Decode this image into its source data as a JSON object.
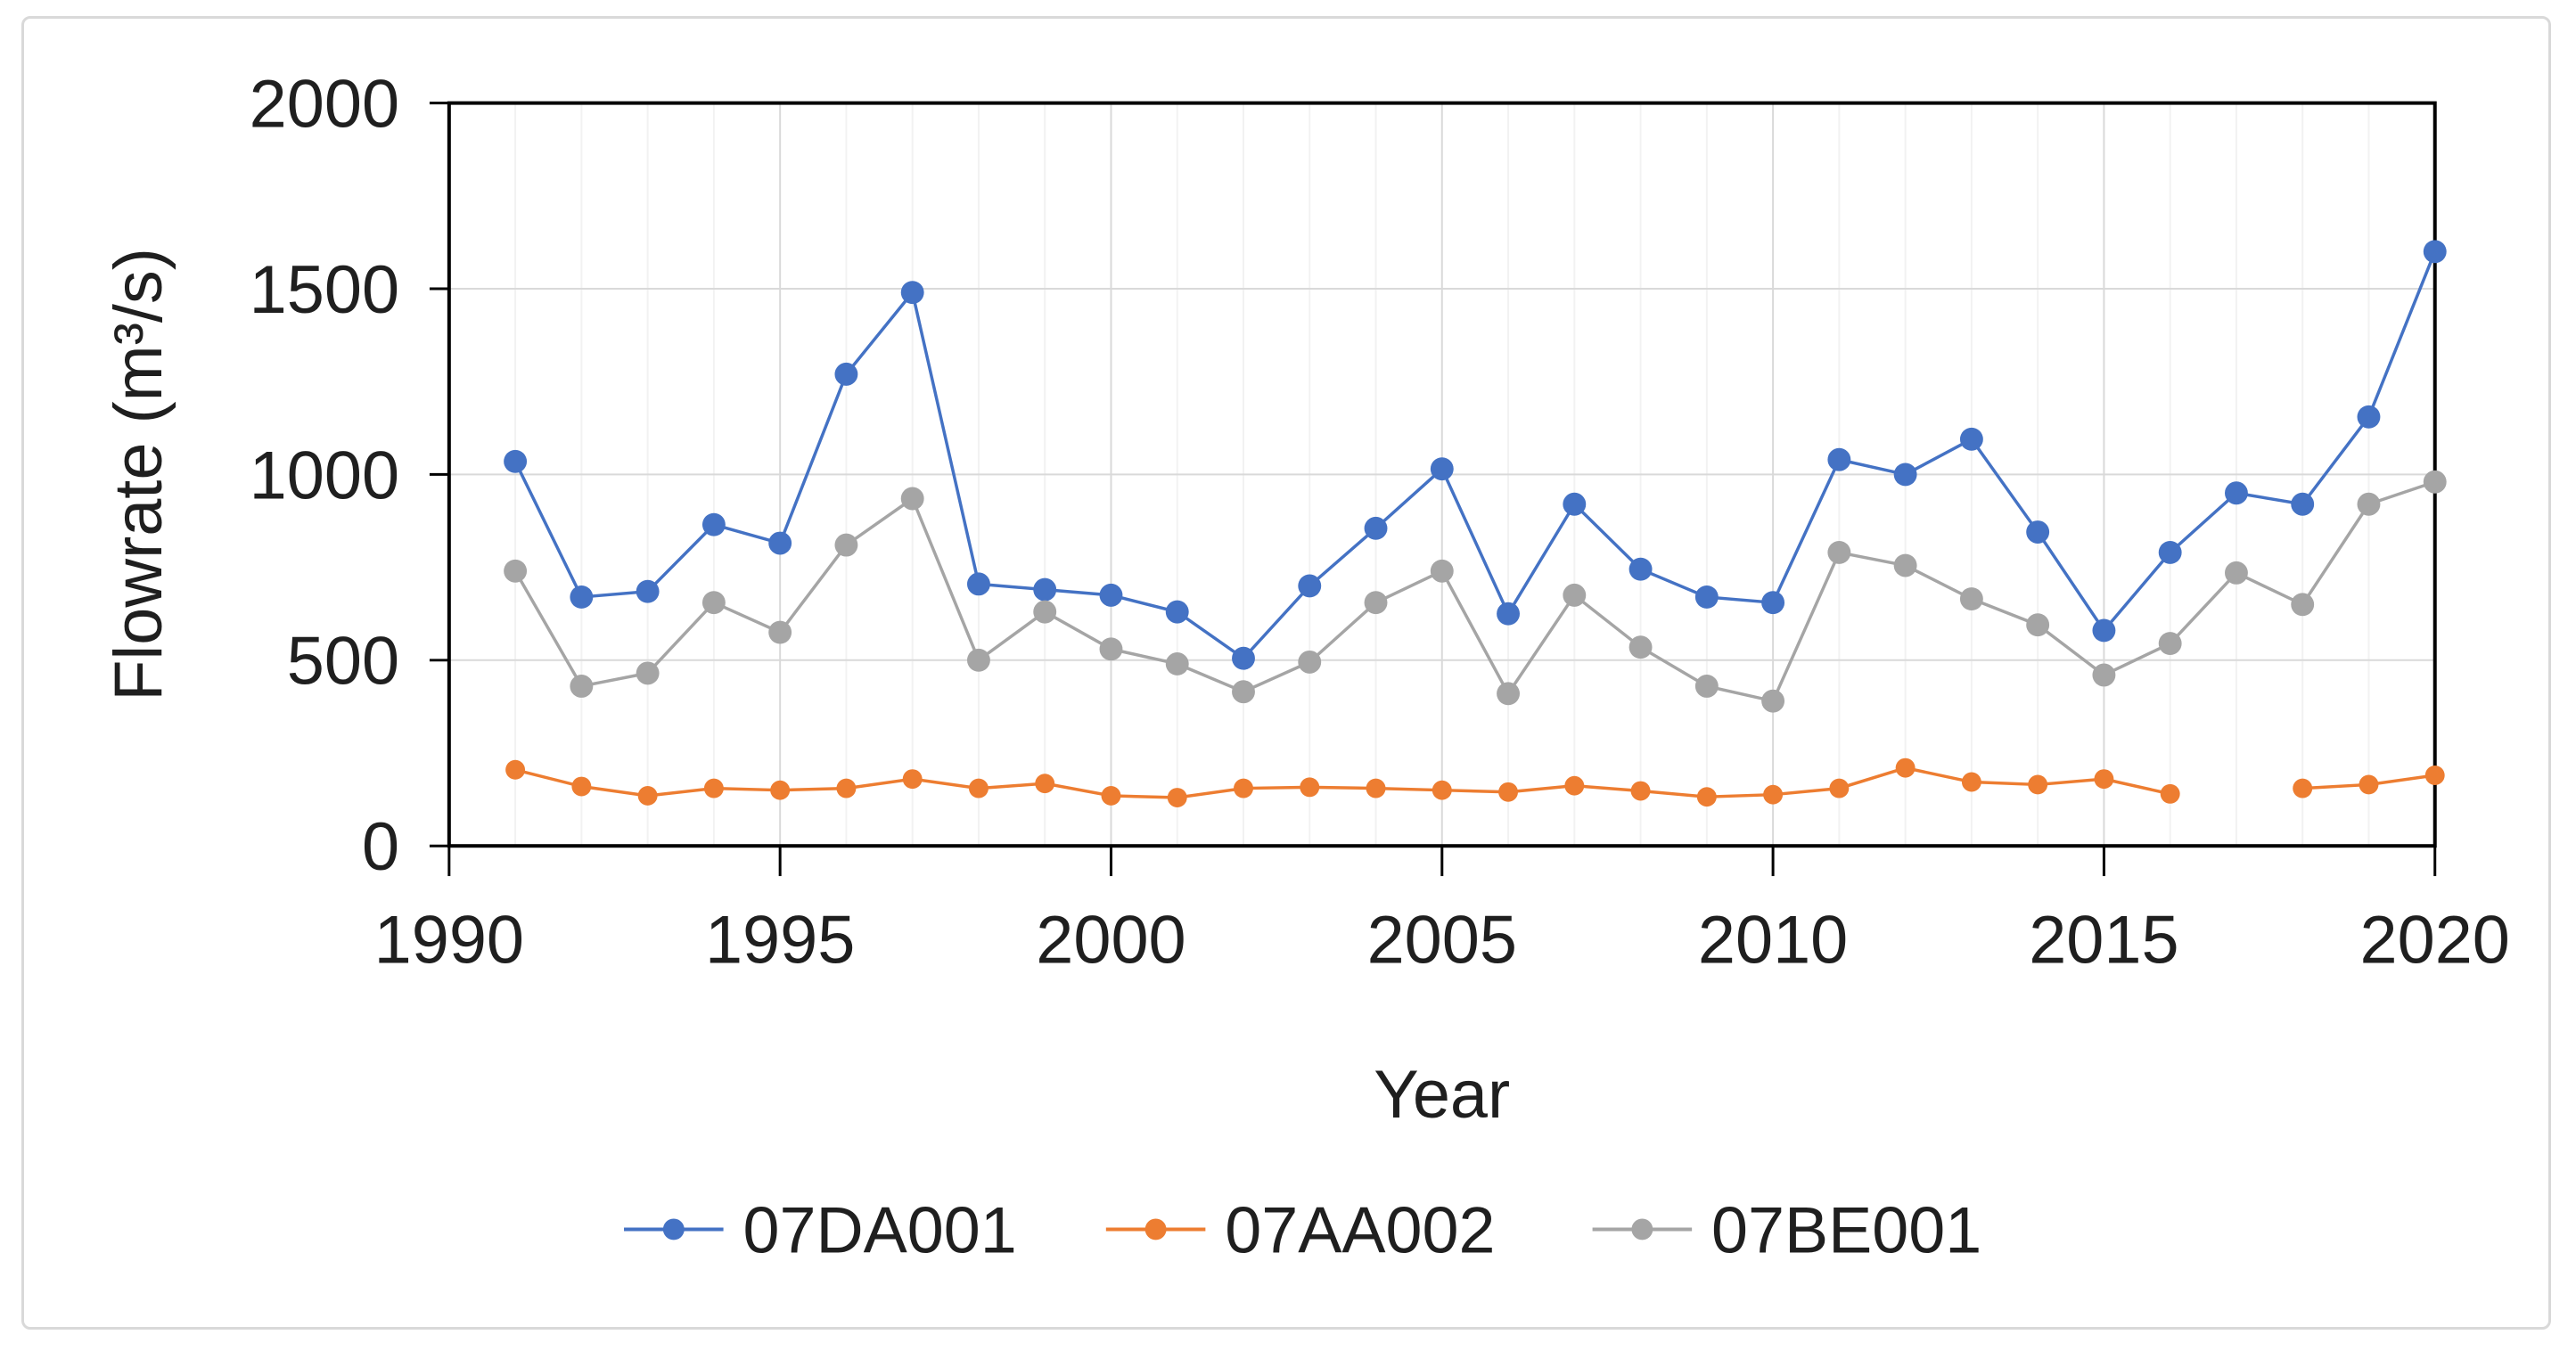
{
  "chart_data": {
    "type": "line",
    "title": "",
    "xlabel": "Year",
    "ylabel": "Flowrate (m³/s)",
    "xlim": [
      1990,
      2020
    ],
    "ylim": [
      0,
      2000
    ],
    "x_ticks": [
      1990,
      1995,
      2000,
      2005,
      2010,
      2015,
      2020
    ],
    "y_ticks": [
      0,
      500,
      1000,
      1500,
      2000
    ],
    "grid": "on",
    "legend_position": "bottom",
    "x": [
      1991,
      1992,
      1993,
      1994,
      1995,
      1996,
      1997,
      1998,
      1999,
      2000,
      2001,
      2002,
      2003,
      2004,
      2005,
      2006,
      2007,
      2008,
      2009,
      2010,
      2011,
      2012,
      2013,
      2014,
      2015,
      2016,
      2017,
      2018,
      2019,
      2020
    ],
    "series": [
      {
        "name": "07DA001",
        "color": "#4472C4",
        "values": [
          1035,
          670,
          685,
          865,
          815,
          1270,
          1490,
          705,
          690,
          675,
          630,
          505,
          700,
          855,
          1015,
          625,
          920,
          745,
          670,
          655,
          1040,
          1000,
          1095,
          845,
          580,
          790,
          950,
          920,
          1155,
          1600
        ]
      },
      {
        "name": "07AA002",
        "color": "#ED7D31",
        "values": [
          205,
          160,
          135,
          155,
          150,
          155,
          180,
          155,
          168,
          135,
          130,
          155,
          158,
          155,
          150,
          145,
          162,
          148,
          132,
          138,
          155,
          210,
          172,
          165,
          180,
          140,
          null,
          155,
          165,
          190
        ]
      },
      {
        "name": "07BE001",
        "color": "#A5A5A5",
        "values": [
          740,
          430,
          465,
          655,
          575,
          810,
          935,
          500,
          630,
          530,
          490,
          415,
          495,
          655,
          740,
          410,
          675,
          535,
          430,
          390,
          790,
          755,
          665,
          595,
          460,
          545,
          735,
          650,
          920,
          980
        ]
      }
    ],
    "style": {
      "plot_border_color": "#000000",
      "major_gridline_color": "#d9d9d9",
      "minor_gridline_color": "#f2f2f2",
      "text_color": "#1f1f1f",
      "frame_border_color": "#d9d9d9",
      "background": "#ffffff"
    }
  }
}
